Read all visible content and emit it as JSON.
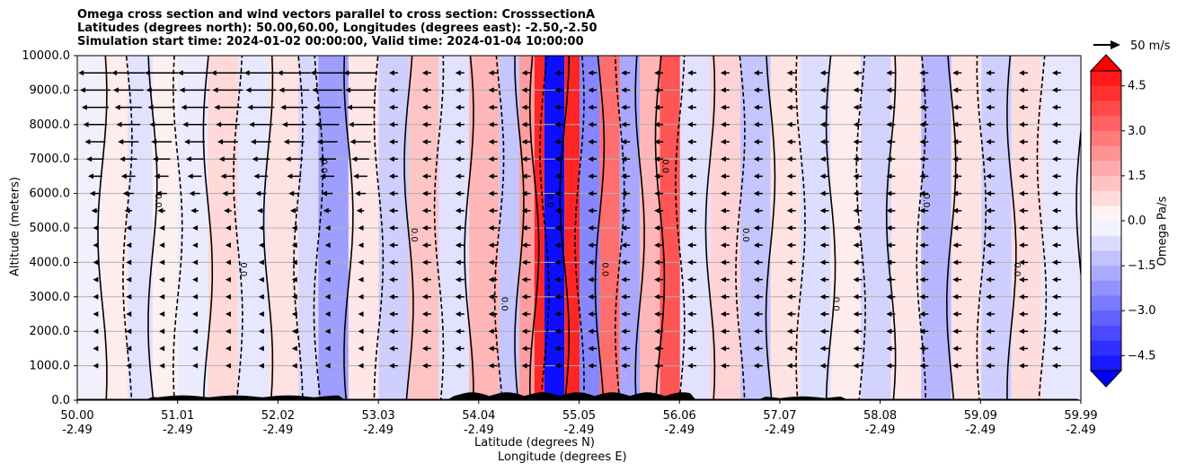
{
  "title_lines": [
    "Omega cross section and wind vectors parallel to cross section: CrosssectionA",
    "Latitudes (degrees north): 50.00,60.00, Longitudes (degrees east): -2.50,-2.50",
    "Simulation start time: 2024-01-02 00:00:00, Valid time: 2024-01-04 10:00:00"
  ],
  "ylabel": "Altitude (meters)",
  "xlabel_lat": "Latitude (degrees N)",
  "xlabel_lon": "Longitude (degrees E)",
  "colorbar_label": "Omega Pa/s",
  "quiver_key": "50 m/s",
  "contour_label_text": "0.0",
  "chart_data": {
    "type": "heatmap",
    "ylim": [
      0,
      10000
    ],
    "y_ticks": [
      "0.0",
      "1000.0",
      "2000.0",
      "3000.0",
      "4000.0",
      "5000.0",
      "6000.0",
      "7000.0",
      "8000.0",
      "9000.0",
      "10000.0"
    ],
    "x_tick_lat": [
      "50.00",
      "51.01",
      "52.02",
      "53.03",
      "54.04",
      "55.05",
      "56.06",
      "57.07",
      "58.08",
      "59.09",
      "59.99"
    ],
    "x_tick_lon": [
      "-2.49",
      "-2.49",
      "-2.49",
      "-2.49",
      "-2.49",
      "-2.49",
      "-2.49",
      "-2.49",
      "-2.49",
      "-2.49",
      "-2.49"
    ],
    "colorbar_range": [
      -5,
      5
    ],
    "colorbar_ticks": [
      "4.5",
      "3.0",
      "1.5",
      "0.0",
      "−1.5",
      "−3.0",
      "−4.5"
    ],
    "colors": {
      "positive": "#ff0000",
      "negative": "#0000ff",
      "neutral": "#ffffff",
      "contour": "#000000",
      "terrain": "#000000"
    },
    "omega_bands": [
      {
        "lat": 50.0,
        "w": -0.3
      },
      {
        "lat": 50.25,
        "w": 0.4
      },
      {
        "lat": 50.5,
        "w": -0.6
      },
      {
        "lat": 50.75,
        "w": 0.3
      },
      {
        "lat": 51.0,
        "w": -0.4
      },
      {
        "lat": 51.3,
        "w": 0.8
      },
      {
        "lat": 51.6,
        "w": -0.5
      },
      {
        "lat": 51.9,
        "w": 0.6
      },
      {
        "lat": 52.2,
        "w": -0.8
      },
      {
        "lat": 52.4,
        "w": -2.0
      },
      {
        "lat": 52.7,
        "w": 0.5
      },
      {
        "lat": 53.0,
        "w": -1.0
      },
      {
        "lat": 53.3,
        "w": 1.2
      },
      {
        "lat": 53.6,
        "w": -0.6
      },
      {
        "lat": 53.9,
        "w": 1.5
      },
      {
        "lat": 54.2,
        "w": -1.2
      },
      {
        "lat": 54.4,
        "w": 2.0
      },
      {
        "lat": 54.55,
        "w": 4.5
      },
      {
        "lat": 54.65,
        "w": -5.0
      },
      {
        "lat": 54.85,
        "w": 4.5
      },
      {
        "lat": 55.0,
        "w": -2.5
      },
      {
        "lat": 55.2,
        "w": 3.0
      },
      {
        "lat": 55.4,
        "w": -1.8
      },
      {
        "lat": 55.6,
        "w": 1.5
      },
      {
        "lat": 55.8,
        "w": 3.5
      },
      {
        "lat": 56.0,
        "w": -0.6
      },
      {
        "lat": 56.3,
        "w": 0.9
      },
      {
        "lat": 56.6,
        "w": -1.2
      },
      {
        "lat": 56.9,
        "w": 0.6
      },
      {
        "lat": 57.2,
        "w": -0.7
      },
      {
        "lat": 57.5,
        "w": 0.4
      },
      {
        "lat": 57.8,
        "w": -0.9
      },
      {
        "lat": 58.1,
        "w": 0.5
      },
      {
        "lat": 58.4,
        "w": -1.5
      },
      {
        "lat": 58.7,
        "w": 0.6
      },
      {
        "lat": 59.0,
        "w": -1.0
      },
      {
        "lat": 59.3,
        "w": 0.7
      },
      {
        "lat": 59.6,
        "w": -0.5
      },
      {
        "lat": 59.99,
        "w": 0.3
      }
    ]
  }
}
